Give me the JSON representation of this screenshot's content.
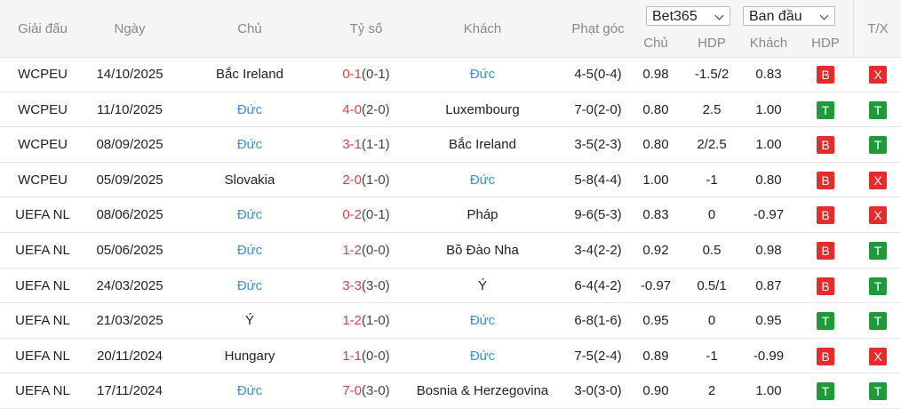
{
  "header": {
    "league": "Giải đấu",
    "date": "Ngày",
    "home": "Chủ",
    "score": "Tỷ số",
    "away": "Khách",
    "corners": "Phạt góc",
    "bookmaker": "Bet365",
    "odds_type": "Ban đầu",
    "sub": [
      "Chủ",
      "HDP",
      "Khách",
      "HDP"
    ],
    "ou": "T/X"
  },
  "colors": {
    "team_focus": "#3d8fd6",
    "score": "#d9463e",
    "ht": "#444444"
  },
  "rows": [
    {
      "league": "WCPEU",
      "date": "14/10/2025",
      "home": "Bắc Ireland",
      "score": "0-1",
      "ht": "(0-1)",
      "away": "Đức",
      "focus": "away",
      "corners": "4-5(0-4)",
      "odds_home": "0.98",
      "hdp": "-1.5/2",
      "odds_away": "0.83",
      "hdp_result": {
        "label": "B",
        "color": "#e52b2b"
      },
      "ou_result": {
        "label": "X",
        "color": "#e52b2b"
      }
    },
    {
      "league": "WCPEU",
      "date": "11/10/2025",
      "home": "Đức",
      "score": "4-0",
      "ht": "(2-0)",
      "away": "Luxembourg",
      "focus": "home",
      "corners": "7-0(2-0)",
      "odds_home": "0.80",
      "hdp": "2.5",
      "odds_away": "1.00",
      "hdp_result": {
        "label": "T",
        "color": "#1f9a3a"
      },
      "ou_result": {
        "label": "T",
        "color": "#1f9a3a"
      }
    },
    {
      "league": "WCPEU",
      "date": "08/09/2025",
      "home": "Đức",
      "score": "3-1",
      "ht": "(1-1)",
      "away": "Bắc Ireland",
      "focus": "home",
      "corners": "3-5(2-3)",
      "odds_home": "0.80",
      "hdp": "2/2.5",
      "odds_away": "1.00",
      "hdp_result": {
        "label": "B",
        "color": "#e52b2b"
      },
      "ou_result": {
        "label": "T",
        "color": "#1f9a3a"
      }
    },
    {
      "league": "WCPEU",
      "date": "05/09/2025",
      "home": "Slovakia",
      "score": "2-0",
      "ht": "(1-0)",
      "away": "Đức",
      "focus": "away",
      "corners": "5-8(4-4)",
      "odds_home": "1.00",
      "hdp": "-1",
      "odds_away": "0.80",
      "hdp_result": {
        "label": "B",
        "color": "#e52b2b"
      },
      "ou_result": {
        "label": "X",
        "color": "#e52b2b"
      }
    },
    {
      "league": "UEFA NL",
      "date": "08/06/2025",
      "home": "Đức",
      "score": "0-2",
      "ht": "(0-1)",
      "away": "Pháp",
      "focus": "home",
      "corners": "9-6(5-3)",
      "odds_home": "0.83",
      "hdp": "0",
      "odds_away": "-0.97",
      "hdp_result": {
        "label": "B",
        "color": "#e52b2b"
      },
      "ou_result": {
        "label": "X",
        "color": "#e52b2b"
      }
    },
    {
      "league": "UEFA NL",
      "date": "05/06/2025",
      "home": "Đức",
      "score": "1-2",
      "ht": "(0-0)",
      "away": "Bồ Đào Nha",
      "focus": "home",
      "corners": "3-4(2-2)",
      "odds_home": "0.92",
      "hdp": "0.5",
      "odds_away": "0.98",
      "hdp_result": {
        "label": "B",
        "color": "#e52b2b"
      },
      "ou_result": {
        "label": "T",
        "color": "#1f9a3a"
      }
    },
    {
      "league": "UEFA NL",
      "date": "24/03/2025",
      "home": "Đức",
      "score": "3-3",
      "ht": "(3-0)",
      "away": "Ý",
      "focus": "home",
      "corners": "6-4(4-2)",
      "odds_home": "-0.97",
      "hdp": "0.5/1",
      "odds_away": "0.87",
      "hdp_result": {
        "label": "B",
        "color": "#e52b2b"
      },
      "ou_result": {
        "label": "T",
        "color": "#1f9a3a"
      }
    },
    {
      "league": "UEFA NL",
      "date": "21/03/2025",
      "home": "Ý",
      "score": "1-2",
      "ht": "(1-0)",
      "away": "Đức",
      "focus": "away",
      "corners": "6-8(1-6)",
      "odds_home": "0.95",
      "hdp": "0",
      "odds_away": "0.95",
      "hdp_result": {
        "label": "T",
        "color": "#1f9a3a"
      },
      "ou_result": {
        "label": "T",
        "color": "#1f9a3a"
      }
    },
    {
      "league": "UEFA NL",
      "date": "20/11/2024",
      "home": "Hungary",
      "score": "1-1",
      "ht": "(0-0)",
      "away": "Đức",
      "focus": "away",
      "corners": "7-5(2-4)",
      "odds_home": "0.89",
      "hdp": "-1",
      "odds_away": "-0.99",
      "hdp_result": {
        "label": "B",
        "color": "#e52b2b"
      },
      "ou_result": {
        "label": "X",
        "color": "#e52b2b"
      }
    },
    {
      "league": "UEFA NL",
      "date": "17/11/2024",
      "home": "Đức",
      "score": "7-0",
      "ht": "(3-0)",
      "away": "Bosnia & Herzegovina",
      "focus": "home",
      "corners": "3-0(3-0)",
      "odds_home": "0.90",
      "hdp": "2",
      "odds_away": "1.00",
      "hdp_result": {
        "label": "T",
        "color": "#1f9a3a"
      },
      "ou_result": {
        "label": "T",
        "color": "#1f9a3a"
      }
    }
  ]
}
